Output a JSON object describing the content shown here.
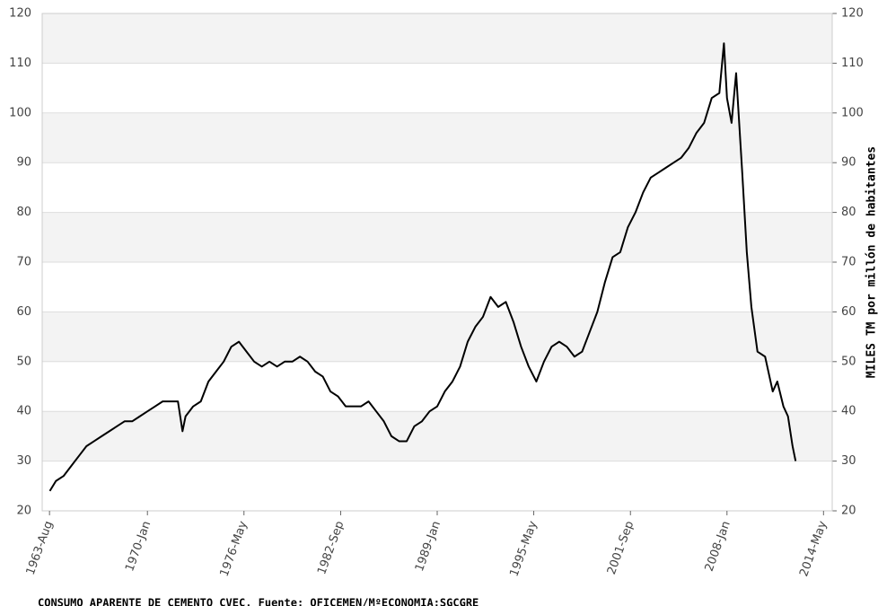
{
  "chart_data": {
    "type": "line",
    "y2label": "MILES TM por millón de habitantes",
    "footnote": "CONSUMO APARENTE DE CEMENTO CVEC. Fuente: OFICEMEN/MºECONOMIA:SGCGRE",
    "x": [
      1963.6,
      1964,
      1964.5,
      1965,
      1965.5,
      1966,
      1966.5,
      1967,
      1967.5,
      1968,
      1968.5,
      1969,
      1969.5,
      1970,
      1970.5,
      1971,
      1971.5,
      1972,
      1972.3,
      1972.5,
      1973,
      1973.5,
      1974,
      1974.5,
      1975,
      1975.5,
      1976,
      1976.5,
      1977,
      1977.5,
      1978,
      1978.5,
      1979,
      1979.5,
      1980,
      1980.5,
      1981,
      1981.5,
      1982,
      1982.5,
      1983,
      1983.5,
      1984,
      1984.5,
      1985,
      1985.5,
      1986,
      1986.5,
      1987,
      1987.5,
      1988,
      1988.5,
      1989,
      1989.5,
      1990,
      1990.5,
      1991,
      1991.5,
      1992,
      1992.5,
      1993,
      1993.5,
      1994,
      1994.5,
      1995,
      1995.5,
      1996,
      1996.5,
      1997,
      1997.5,
      1998,
      1998.5,
      1999,
      1999.5,
      2000,
      2000.5,
      2001,
      2001.5,
      2002,
      2002.5,
      2003,
      2003.5,
      2004,
      2004.5,
      2005,
      2005.5,
      2006,
      2006.5,
      2007,
      2007.5,
      2007.8,
      2008,
      2008.3,
      2008.6,
      2009,
      2009.3,
      2009.6,
      2010,
      2010.5,
      2011,
      2011.3,
      2011.7,
      2012,
      2012.3,
      2012.5
    ],
    "series": [
      {
        "name": "Consumo",
        "color": "#000000",
        "values": [
          24,
          26,
          27,
          29,
          31,
          33,
          34,
          35,
          36,
          37,
          38,
          38,
          39,
          40,
          41,
          42,
          42,
          42,
          36,
          39,
          41,
          42,
          46,
          48,
          50,
          53,
          54,
          52,
          50,
          49,
          50,
          49,
          50,
          50,
          51,
          50,
          48,
          47,
          44,
          43,
          41,
          41,
          41,
          42,
          40,
          38,
          35,
          34,
          34,
          37,
          38,
          40,
          41,
          44,
          46,
          49,
          54,
          57,
          59,
          63,
          61,
          62,
          58,
          53,
          49,
          46,
          50,
          53,
          54,
          53,
          51,
          52,
          56,
          60,
          66,
          71,
          72,
          77,
          80,
          84,
          87,
          88,
          89,
          90,
          91,
          93,
          96,
          98,
          103,
          104,
          114,
          103,
          98,
          108,
          88,
          72,
          61,
          52,
          51,
          44,
          46,
          41,
          39,
          33,
          30
        ]
      }
    ],
    "xlim": [
      1963.1,
      2014.9
    ],
    "xticks": [
      {
        "value": 1963.58,
        "label": "1963-Aug"
      },
      {
        "value": 1970.0,
        "label": "1970-Jan"
      },
      {
        "value": 1976.33,
        "label": "1976-May"
      },
      {
        "value": 1982.67,
        "label": "1982-Sep"
      },
      {
        "value": 1989.0,
        "label": "1989-Jan"
      },
      {
        "value": 1995.33,
        "label": "1995-May"
      },
      {
        "value": 2001.67,
        "label": "2001-Sep"
      },
      {
        "value": 2008.0,
        "label": "2008-Jan"
      },
      {
        "value": 2014.33,
        "label": "2014-May"
      }
    ],
    "ylim": [
      20,
      120
    ],
    "yticks": [
      20,
      30,
      40,
      50,
      60,
      70,
      80,
      90,
      100,
      110,
      120
    ],
    "y2lim": [
      20,
      120
    ],
    "y2ticks": [
      20,
      30,
      40,
      50,
      60,
      70,
      80,
      90,
      100,
      110,
      120
    ],
    "grid": true
  }
}
